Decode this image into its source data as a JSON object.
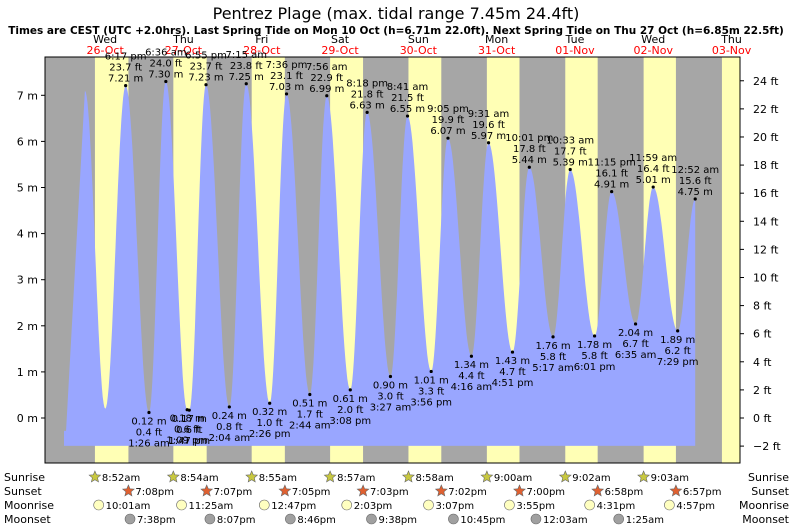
{
  "title": "Pentrez Plage (max. tidal range 7.45m 24.4ft)",
  "subtitle": "Times are CEST (UTC +2.0hrs). Last Spring Tide on Mon 10 Oct (h=6.71m 22.0ft). Next Spring Tide on Thu 27 Oct (h=6.85m 22.5ft)",
  "colors": {
    "water": "#99a6ff",
    "day": "#ffffb5",
    "night": "#a6a6a6",
    "date_red": "#ff0000",
    "sun_star": "#c8c840",
    "sunset_star": "#e06030",
    "moonrise": "#ffffc0",
    "moonset": "#a0a0a0"
  },
  "days": [
    {
      "dow": "Wed",
      "date": "26-Oct"
    },
    {
      "dow": "Thu",
      "date": "27-Oct"
    },
    {
      "dow": "Fri",
      "date": "28-Oct"
    },
    {
      "dow": "Sat",
      "date": "29-Oct"
    },
    {
      "dow": "Sun",
      "date": "30-Oct"
    },
    {
      "dow": "Mon",
      "date": "31-Oct"
    },
    {
      "dow": "Tue",
      "date": "01-Nov"
    },
    {
      "dow": "Wed",
      "date": "02-Nov"
    },
    {
      "dow": "Thu",
      "date": "03-Nov"
    }
  ],
  "row_labels": {
    "sunrise": "Sunrise",
    "sunset": "Sunset",
    "moonrise": "Moonrise",
    "moonset": "Moonset"
  },
  "chart_data": {
    "type": "area",
    "title": "Pentrez Plage (max. tidal range 7.45m 24.4ft)",
    "x_unit": "days from Wed 26-Oct 00:00",
    "xlim": [
      0,
      8.5
    ],
    "ylim_m": [
      -1,
      7.95
    ],
    "ylim_ft": [
      -3.28,
      26.08
    ],
    "y_ticks_m": [
      -1,
      0,
      1,
      2,
      3,
      4,
      5,
      6,
      7
    ],
    "y_tick_labels_m": [
      "−1 m",
      "0 m",
      "1 m",
      "2 m",
      "3 m",
      "4 m",
      "5 m",
      "6 m",
      "7 m"
    ],
    "y_ticks_ft": [
      -2,
      0,
      2,
      4,
      6,
      8,
      10,
      12,
      14,
      16,
      18,
      20,
      22,
      24
    ],
    "y_tick_labels_ft": [
      "−2 ft",
      "0 ft",
      "2 ft",
      "4 ft",
      "6 ft",
      "8 ft",
      "10 ft",
      "12 ft",
      "14 ft",
      "16 ft",
      "18 ft",
      "20 ft",
      "22 ft",
      "24 ft"
    ],
    "extremes": [
      {
        "type": "high",
        "day": 0,
        "time": "6:17 pm",
        "ft": "23.7 ft",
        "m": 7.21,
        "label_m": "7.21 m"
      },
      {
        "type": "low",
        "day": 1,
        "time": "1:09 pm",
        "ft": "0.6 ft",
        "m": 0.18,
        "label_m": "0.18 m"
      },
      {
        "type": "high",
        "day": 1,
        "time": "6:36 am",
        "ft": "24.0 ft",
        "m": 7.3,
        "label_m": "7.30 m"
      },
      {
        "type": "low",
        "day": 1,
        "time": "1:26 am",
        "ft": "0.4 ft",
        "m": 0.12,
        "label_m": "0.12 m"
      },
      {
        "type": "high",
        "day": 1,
        "time": "6:55 pm",
        "ft": "23.7 ft",
        "m": 7.23,
        "label_m": "7.23 m"
      },
      {
        "type": "low",
        "day": 1,
        "time": "1:47 pm",
        "ft": "0.6 ft",
        "m": 0.17,
        "label_m": "0.17 m"
      },
      {
        "type": "high",
        "day": 2,
        "time": "7:15 am",
        "ft": "23.8 ft",
        "m": 7.25,
        "label_m": "7.25 m"
      },
      {
        "type": "low",
        "day": 2,
        "time": "2:04 am",
        "ft": "0.8 ft",
        "m": 0.24,
        "label_m": "0.24 m"
      },
      {
        "type": "high",
        "day": 2,
        "time": "7:36 pm",
        "ft": "23.1 ft",
        "m": 7.03,
        "label_m": "7.03 m"
      },
      {
        "type": "low",
        "day": 2,
        "time": "2:26 pm",
        "ft": "1.0 ft",
        "m": 0.32,
        "label_m": "0.32 m"
      },
      {
        "type": "high",
        "day": 3,
        "time": "7:56 am",
        "ft": "22.9 ft",
        "m": 6.99,
        "label_m": "6.99 m"
      },
      {
        "type": "low",
        "day": 3,
        "time": "2:44 am",
        "ft": "1.7 ft",
        "m": 0.51,
        "label_m": "0.51 m"
      },
      {
        "type": "high",
        "day": 3,
        "time": "8:18 pm",
        "ft": "21.8 ft",
        "m": 6.63,
        "label_m": "6.63 m"
      },
      {
        "type": "low",
        "day": 3,
        "time": "3:08 pm",
        "ft": "2.0 ft",
        "m": 0.61,
        "label_m": "0.61 m"
      },
      {
        "type": "high",
        "day": 4,
        "time": "8:41 am",
        "ft": "21.5 ft",
        "m": 6.55,
        "label_m": "6.55 m"
      },
      {
        "type": "low",
        "day": 4,
        "time": "3:27 am",
        "ft": "3.0 ft",
        "m": 0.9,
        "label_m": "0.90 m"
      },
      {
        "type": "high",
        "day": 4,
        "time": "9:05 pm",
        "ft": "19.9 ft",
        "m": 6.07,
        "label_m": "6.07 m"
      },
      {
        "type": "low",
        "day": 4,
        "time": "3:56 pm",
        "ft": "3.3 ft",
        "m": 1.01,
        "label_m": "1.01 m"
      },
      {
        "type": "high",
        "day": 5,
        "time": "9:31 am",
        "ft": "19.6 ft",
        "m": 5.97,
        "label_m": "5.97 m"
      },
      {
        "type": "low",
        "day": 5,
        "time": "4:16 am",
        "ft": "4.4 ft",
        "m": 1.34,
        "label_m": "1.34 m"
      },
      {
        "type": "high",
        "day": 5,
        "time": "10:01 pm",
        "ft": "17.8 ft",
        "m": 5.44,
        "label_m": "5.44 m"
      },
      {
        "type": "low",
        "day": 5,
        "time": "4:51 pm",
        "ft": "4.7 ft",
        "m": 1.43,
        "label_m": "1.43 m"
      },
      {
        "type": "high",
        "day": 6,
        "time": "10:33 am",
        "ft": "17.7 ft",
        "m": 5.39,
        "label_m": "5.39 m"
      },
      {
        "type": "low",
        "day": 6,
        "time": "5:17 am",
        "ft": "5.8 ft",
        "m": 1.76,
        "label_m": "1.76 m"
      },
      {
        "type": "high",
        "day": 6,
        "time": "11:15 pm",
        "ft": "16.1 ft",
        "m": 4.91,
        "label_m": "4.91 m"
      },
      {
        "type": "low",
        "day": 6,
        "time": "6:01 pm",
        "ft": "5.8 ft",
        "m": 1.78,
        "label_m": "1.78 m"
      },
      {
        "type": "high",
        "day": 7,
        "time": "11:59 am",
        "ft": "16.4 ft",
        "m": 5.01,
        "label_m": "5.01 m"
      },
      {
        "type": "low",
        "day": 7,
        "time": "6:35 am",
        "ft": "6.7 ft",
        "m": 2.04,
        "label_m": "2.04 m"
      },
      {
        "type": "high",
        "day": 8,
        "time": "12:52 am",
        "ft": "15.6 ft",
        "m": 4.75,
        "label_m": "4.75 m"
      },
      {
        "type": "low",
        "day": 7,
        "time": "7:29 pm",
        "ft": "6.2 ft",
        "m": 1.89,
        "label_m": "1.89 m"
      }
    ],
    "sun_moon": [
      {
        "sunrise": "8:52am",
        "sunset": "7:08pm",
        "moonrise": "10:01am",
        "moonset": "7:38pm"
      },
      {
        "sunrise": "8:54am",
        "sunset": "7:07pm",
        "moonrise": "11:25am",
        "moonset": "8:07pm"
      },
      {
        "sunrise": "8:55am",
        "sunset": "7:05pm",
        "moonrise": "12:47pm",
        "moonset": "8:46pm"
      },
      {
        "sunrise": "8:57am",
        "sunset": "7:03pm",
        "moonrise": "2:03pm",
        "moonset": "9:38pm"
      },
      {
        "sunrise": "8:58am",
        "sunset": "7:02pm",
        "moonrise": "3:07pm",
        "moonset": "10:45pm"
      },
      {
        "sunrise": "9:00am",
        "sunset": "7:00pm",
        "moonrise": "3:55pm",
        "moonset": "12:03am"
      },
      {
        "sunrise": "9:02am",
        "sunset": "6:58pm",
        "moonrise": "4:31pm",
        "moonset": "1:25am"
      },
      {
        "sunrise": "9:03am",
        "sunset": "6:57pm",
        "moonrise": "4:57pm",
        "moonset": ""
      }
    ]
  }
}
